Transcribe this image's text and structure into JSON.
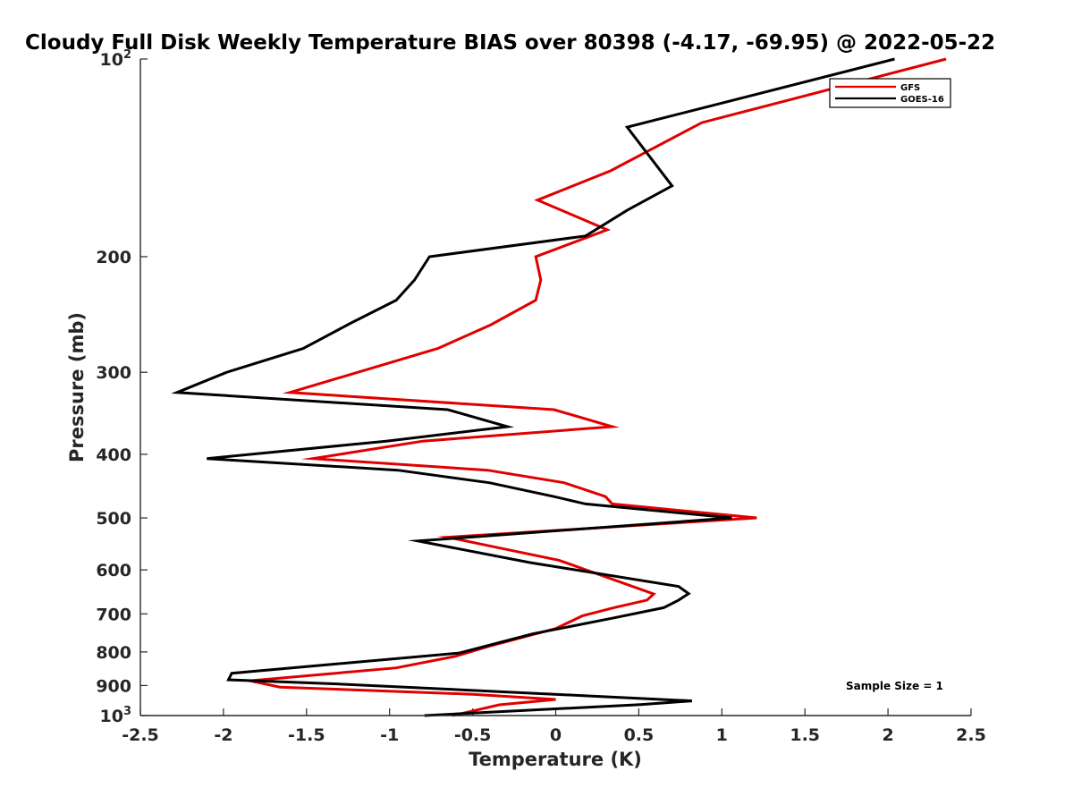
{
  "chart_data": {
    "type": "line",
    "title": "Cloudy Full Disk Weekly Temperature BIAS over 80398 (-4.17, -69.95) @ 2022-05-22",
    "xlabel": "Temperature (K)",
    "ylabel": "Pressure (mb)",
    "xlim": [
      -2.5,
      2.5
    ],
    "ylim": [
      100,
      1000
    ],
    "y_scale": "log",
    "y_reversed": true,
    "x_ticks": [
      -2.5,
      -2,
      -1.5,
      -1,
      -0.5,
      0,
      0.5,
      1,
      1.5,
      2,
      2.5
    ],
    "x_tick_labels": [
      "-2.5",
      "-2",
      "-1.5",
      "-1",
      "-0.5",
      "0",
      "0.5",
      "1",
      "1.5",
      "2",
      "2.5"
    ],
    "y_ticks": [
      {
        "value": 100,
        "base": "10",
        "exp": "2"
      },
      {
        "value": 200,
        "label": "200"
      },
      {
        "value": 300,
        "label": "300"
      },
      {
        "value": 400,
        "label": "400"
      },
      {
        "value": 500,
        "label": "500"
      },
      {
        "value": 600,
        "label": "600"
      },
      {
        "value": 700,
        "label": "700"
      },
      {
        "value": 800,
        "label": "800"
      },
      {
        "value": 900,
        "label": "900"
      },
      {
        "value": 1000,
        "base": "10",
        "exp": "3"
      }
    ],
    "legend_position": "top-right",
    "annotation": "Sample Size = 1",
    "series": [
      {
        "name": "GFS",
        "color": "#e00000",
        "points": [
          [
            2.35,
            100
          ],
          [
            0.88,
            125
          ],
          [
            0.33,
            148
          ],
          [
            -0.11,
            164
          ],
          [
            0.31,
            182
          ],
          [
            -0.12,
            200
          ],
          [
            -0.09,
            217
          ],
          [
            -0.12,
            233
          ],
          [
            -0.39,
            254
          ],
          [
            -0.71,
            276
          ],
          [
            -1.6,
            322
          ],
          [
            -0.01,
            342
          ],
          [
            0.34,
            363
          ],
          [
            -0.8,
            382
          ],
          [
            -1.46,
            406
          ],
          [
            -0.41,
            423
          ],
          [
            0.05,
            442
          ],
          [
            0.3,
            464
          ],
          [
            0.34,
            476
          ],
          [
            1.21,
            500
          ],
          [
            -0.65,
            535
          ],
          [
            0.02,
            580
          ],
          [
            0.59,
            653
          ],
          [
            0.55,
            667
          ],
          [
            0.35,
            685
          ],
          [
            0.16,
            705
          ],
          [
            0.0,
            737
          ],
          [
            -0.4,
            784
          ],
          [
            -0.6,
            812
          ],
          [
            -0.96,
            846
          ],
          [
            -1.84,
            885
          ],
          [
            -1.66,
            905
          ],
          [
            -0.5,
            928
          ],
          [
            0.0,
            945
          ],
          [
            -0.34,
            963
          ],
          [
            -0.62,
            1000
          ]
        ]
      },
      {
        "name": "GOES-16",
        "color": "#000000",
        "points": [
          [
            2.04,
            100
          ],
          [
            0.43,
            127
          ],
          [
            0.7,
            156
          ],
          [
            0.43,
            170
          ],
          [
            0.18,
            186
          ],
          [
            -0.76,
            200
          ],
          [
            -0.85,
            217
          ],
          [
            -0.96,
            233
          ],
          [
            -1.24,
            253
          ],
          [
            -1.52,
            276
          ],
          [
            -1.98,
            300
          ],
          [
            -2.28,
            322
          ],
          [
            -0.65,
            342
          ],
          [
            -0.29,
            363
          ],
          [
            -1.02,
            382
          ],
          [
            -2.1,
            406
          ],
          [
            -0.95,
            423
          ],
          [
            -0.4,
            442
          ],
          [
            -0.01,
            464
          ],
          [
            0.18,
            476
          ],
          [
            1.06,
            500
          ],
          [
            -0.83,
            542
          ],
          [
            -0.15,
            585
          ],
          [
            0.74,
            636
          ],
          [
            0.8,
            652
          ],
          [
            0.74,
            667
          ],
          [
            0.65,
            685
          ],
          [
            0.35,
            710
          ],
          [
            -0.14,
            751
          ],
          [
            -0.58,
            803
          ],
          [
            -1.95,
            862
          ],
          [
            -1.97,
            882
          ],
          [
            -1.32,
            895
          ],
          [
            0.15,
            932
          ],
          [
            0.82,
            950
          ],
          [
            0.51,
            962
          ],
          [
            -0.79,
            1000
          ]
        ]
      }
    ]
  }
}
